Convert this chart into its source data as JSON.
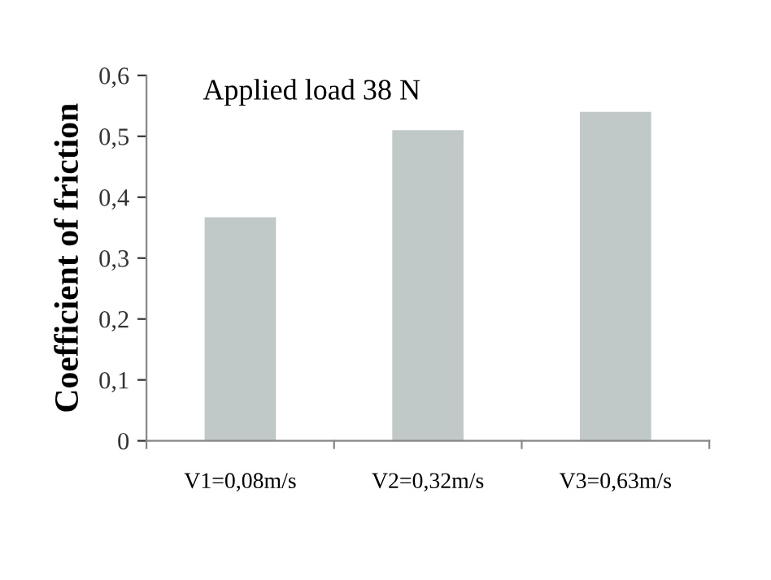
{
  "chart_data": {
    "type": "bar",
    "title": "Applied load 38 N",
    "ylabel": "Coefficient of friction",
    "categories": [
      "V1=0,08m/s",
      "V2=0,32m/s",
      "V3=0,63m/s"
    ],
    "values": [
      0.367,
      0.51,
      0.54
    ],
    "color": "#c0c8c8",
    "ylim": [
      0,
      0.6
    ],
    "yticks": [
      {
        "value": 0,
        "label": "0"
      },
      {
        "value": 0.1,
        "label": "0,1"
      },
      {
        "value": 0.2,
        "label": "0,2"
      },
      {
        "value": 0.3,
        "label": "0,3"
      },
      {
        "value": 0.4,
        "label": "0,4"
      },
      {
        "value": 0.5,
        "label": "0,5"
      },
      {
        "value": 0.6,
        "label": "0,6"
      }
    ],
    "grid": false,
    "legend": false
  }
}
